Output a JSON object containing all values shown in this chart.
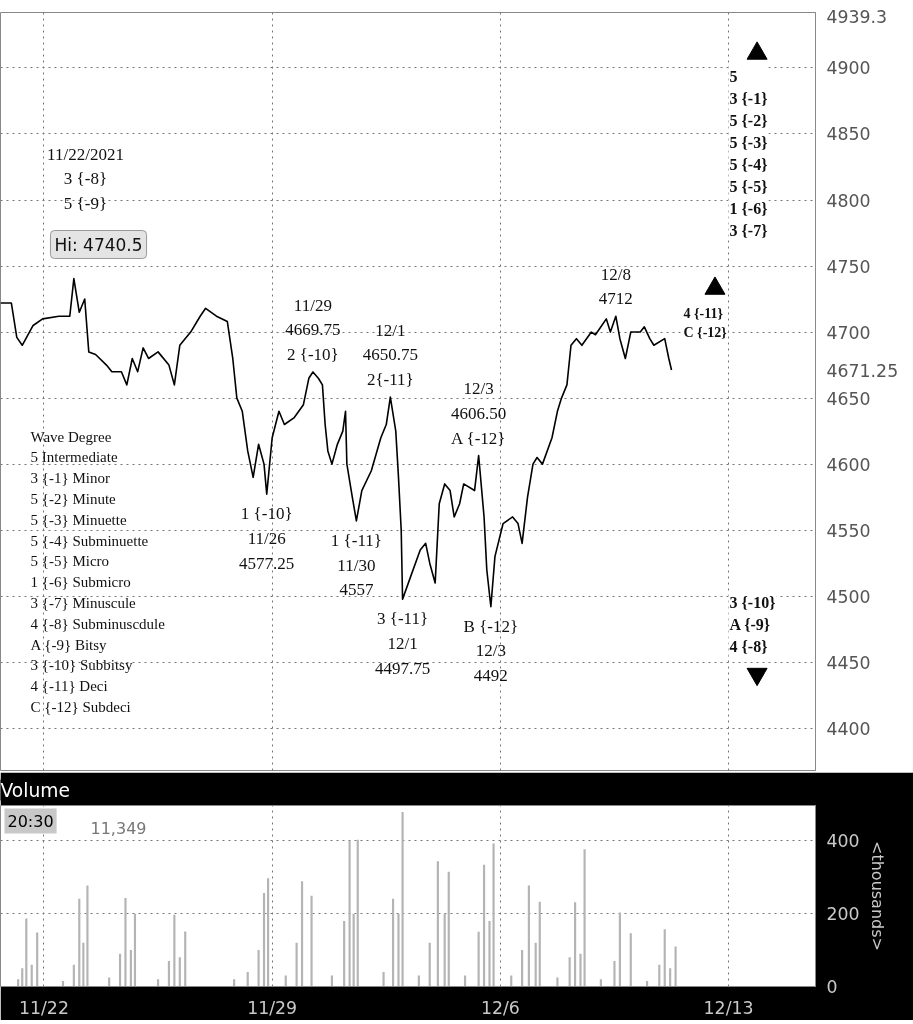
{
  "chart_data": [
    {
      "type": "line",
      "tick_labels": "y",
      "grid": true,
      "xlim": [
        "2021-11-20T16:00",
        "2021-12-15T16:00"
      ],
      "xticks": [
        {
          "value": "2021-11-22",
          "label": null
        },
        {
          "value": "2021-11-29",
          "label": null
        },
        {
          "value": "2021-12-06",
          "label": null
        },
        {
          "value": "2021-12-13",
          "label": null
        }
      ],
      "ylim": [
        4368,
        4942
      ],
      "yticks": [
        4400,
        4450,
        4500,
        4550,
        4600,
        4650,
        4700,
        4750,
        4800,
        4850,
        4900,
        {
          "value": 4939.3,
          "label": "4939.3"
        },
        {
          "value": 4671.25,
          "label": "4671.25"
        }
      ],
      "x": [
        "2021-11-20T16:00",
        "2021-11-21T00:00",
        "2021-11-21T04:00",
        "2021-11-21T08:00",
        "2021-11-21T16:00",
        "2021-11-21T23:00",
        "2021-11-22T11:00",
        "2021-11-22T19:00",
        "2021-11-22T22:00",
        "2021-11-23T02:00",
        "2021-11-23T06:00",
        "2021-11-23T09:00",
        "2021-11-23T14:00",
        "2021-11-23T22:00",
        "2021-11-24T02:00",
        "2021-11-24T09:00",
        "2021-11-24T13:00",
        "2021-11-24T17:00",
        "2021-11-24T21:00",
        "2021-11-25T01:00",
        "2021-11-25T05:00",
        "2021-11-25T12:00",
        "2021-11-25T20:00",
        "2021-11-26T00:00",
        "2021-11-26T04:00",
        "2021-11-26T12:00",
        "2021-11-26T19:00",
        "2021-11-26T23:00",
        "2021-11-27T07:00",
        "2021-11-27T15:00",
        "2021-11-27T19:00",
        "2021-11-27T22:00",
        "2021-11-28T02:00",
        "2021-11-28T06:00",
        "2021-11-28T10:00",
        "2021-11-28T14:00",
        "2021-11-28T18:00",
        "2021-11-28T20:00",
        "2021-11-29T00:00",
        "2021-11-29T05:00",
        "2021-11-29T09:00",
        "2021-11-29T16:00",
        "2021-11-29T23:00",
        "2021-11-30T03:00",
        "2021-11-30T06:00",
        "2021-11-30T10:00",
        "2021-11-30T13:00",
        "2021-11-30T15:00",
        "2021-11-30T17:00",
        "2021-11-30T20:00",
        "2021-12-01T00:00",
        "2021-12-01T04:00",
        "2021-12-01T06:00",
        "2021-12-01T07:00",
        "2021-12-01T11:00",
        "2021-12-01T14:00",
        "2021-12-01T18:00",
        "2021-12-02T01:00",
        "2021-12-02T08:00",
        "2021-12-02T12:00",
        "2021-12-02T15:00",
        "2021-12-02T19:00",
        "2021-12-02T21:00",
        "2021-12-02T23:00",
        "2021-12-03T00:00",
        "2021-12-03T06:00",
        "2021-12-03T13:00",
        "2021-12-03T17:00",
        "2021-12-03T20:00",
        "2021-12-04T00:00",
        "2021-12-04T03:00",
        "2021-12-04T07:00",
        "2021-12-04T11:00",
        "2021-12-04T14:00",
        "2021-12-04T18:00",
        "2021-12-04T21:00",
        "2021-12-05T05:00",
        "2021-12-05T08:00",
        "2021-12-05T12:00",
        "2021-12-05T14:00",
        "2021-12-05T17:00",
        "2021-12-05T20:00",
        "2021-12-06T02:00",
        "2021-12-06T09:00",
        "2021-12-06T13:00",
        "2021-12-06T16:00",
        "2021-12-06T20:00",
        "2021-12-07T00:00",
        "2021-12-07T03:00",
        "2021-12-07T07:00",
        "2021-12-07T14:00",
        "2021-12-07T18:00",
        "2021-12-07T21:00",
        "2021-12-08T01:00",
        "2021-12-08T04:00",
        "2021-12-08T08:00",
        "2021-12-08T12:00",
        "2021-12-08T19:00",
        "2021-12-08T22:00",
        "2021-12-09T06:00",
        "2021-12-09T09:00",
        "2021-12-09T13:00",
        "2021-12-09T16:00",
        "2021-12-09T20:00",
        "2021-12-10T00:00",
        "2021-12-10T07:00",
        "2021-12-10T10:00",
        "2021-12-10T14:00",
        "2021-12-10T17:00",
        "2021-12-11T01:00",
        "2021-12-11T04:00",
        "2021-12-11T06:00"
      ],
      "series": [
        {
          "color": "#000000",
          "values": [
            4722,
            4722,
            4696,
            4690,
            4705,
            4710,
            4712,
            4712,
            4740.5,
            4715,
            4725,
            4685,
            4683,
            4675,
            4670,
            4670,
            4660,
            4680,
            4670,
            4688,
            4680,
            4685,
            4675,
            4660,
            4690,
            4700,
            4712,
            4718,
            4712,
            4708,
            4680,
            4650,
            4640,
            4610,
            4590,
            4615,
            4600,
            4577.25,
            4620,
            4640,
            4630,
            4635,
            4645,
            4665,
            4669.75,
            4665,
            4660,
            4630,
            4610,
            4600,
            4615,
            4625,
            4640,
            4600,
            4575,
            4557,
            4580,
            4595,
            4620,
            4630,
            4650.75,
            4625,
            4590,
            4550,
            4497.75,
            4515,
            4535,
            4540,
            4525,
            4510,
            4570,
            4585,
            4580,
            4560,
            4570,
            4585,
            4580,
            4606.5,
            4560,
            4520,
            4492,
            4530,
            4555,
            4560,
            4555,
            4540,
            4575,
            4600,
            4605,
            4600,
            4620,
            4640,
            4650,
            4660,
            4690,
            4695,
            4690,
            4700,
            4698,
            4710,
            4700,
            4712,
            4695,
            4680,
            4700,
            4700,
            4704,
            4695,
            4690,
            4695,
            4680,
            4671.25
          ]
        },
        {
          "type": "scatter",
          "marker": "triangle",
          "color": "#000000",
          "x": [
            "2021-12-13T21:00",
            "2021-12-12T14:00"
          ],
          "values": [
            4911,
            4733
          ]
        },
        {
          "type": "scatter",
          "color": "#000000",
          "x": [
            "2021-12-13T21:00"
          ],
          "values": [
            4441
          ]
        }
      ],
      "annotations": [
        "Hi: 4740.5",
        "11/22/2021\n3 {-8}\n5 {-9}",
        "Wave Degree\n5            Intermediate\n3 {-1}    Minor\n5 {-2}    Minute\n5 {-3}    Minuette\n5 {-4}    Subminuette\n5 {-5}    Micro\n1 {-6}    Submicro\n3 {-7}    Minuscule\n4 {-8}    Subminuscdule\nA {-9}     Bitsy\n3 {-10} Subbitsy\n4 {-11} Deci\nC {-12} Subdeci",
        "5\n3 {-1}\n5 {-2}\n5 {-3}\n5 {-4}\n5 {-5}\n1 {-6}\n3 {-7}",
        "4 {-11}\nC {-12}",
        "3 {-10}\nA {-9}\n4 {-8}",
        {
          "text": "11/29\n4669.75\n2 {-10}",
          "x": "2021-11-30T06:00",
          "y": 4669.75
        },
        {
          "text": "12/1\n4650.75\n2{-11}",
          "x": "2021-12-02T15:00",
          "y": 4650.75
        },
        {
          "text": "12/3\n4606.50\nA {-12}",
          "x": "2021-12-05T08:00",
          "y": 4606.5
        },
        {
          "text": "12/8\n4712",
          "x": "2021-12-09T13:00",
          "y": 4712
        },
        {
          "text": "1 {-10}\n11/26\n4577.25",
          "x": "2021-11-28T20:00",
          "y": 4577.25
        },
        {
          "text": "1 {-11}\n11/30\n4557",
          "x": "2021-12-01T14:00",
          "y": 4557
        },
        {
          "text": "3 {-11}\n12/1\n4497.75",
          "x": "2021-12-03T00:00",
          "y": 4497.75
        },
        {
          "text": "B {-12}\n12/3\n4492",
          "x": "2021-12-05T17:00",
          "y": 4492
        }
      ]
    },
    {
      "type": "bar",
      "title": "Volume",
      "ylabel": "<thousands>",
      "grid": true,
      "xlim": [
        "2021-11-20T16:00",
        "2021-12-15T16:00"
      ],
      "xticks": [
        {
          "value": "2021-11-22",
          "label": "11/22"
        },
        {
          "value": "2021-11-29",
          "label": "11/29"
        },
        {
          "value": "2021-12-06",
          "label": "12/6"
        },
        {
          "value": "2021-12-13",
          "label": "12/13"
        }
      ],
      "ylim": [
        0,
        497
      ],
      "yticks": [
        0,
        200,
        400
      ],
      "x": [
        "2021-11-21T05:00",
        "2021-11-21T08:00",
        "2021-11-21T11:00",
        "2021-11-21T15:00",
        "2021-11-21T19:00",
        "2021-11-22T14:00",
        "2021-11-22T22:00",
        "2021-11-23T02:00",
        "2021-11-23T05:00",
        "2021-11-23T08:00",
        "2021-11-24T00:00",
        "2021-11-24T08:00",
        "2021-11-24T12:00",
        "2021-11-24T16:00",
        "2021-11-24T19:00",
        "2021-11-25T12:00",
        "2021-11-25T20:00",
        "2021-11-26T00:00",
        "2021-11-26T04:00",
        "2021-11-26T08:00",
        "2021-11-27T20:00",
        "2021-11-28T06:00",
        "2021-11-28T14:00",
        "2021-11-28T18:00",
        "2021-11-28T21:00",
        "2021-11-29T10:00",
        "2021-11-29T18:00",
        "2021-11-29T22:00",
        "2021-11-30T05:00",
        "2021-11-30T20:00",
        "2021-12-01T05:00",
        "2021-12-01T09:00",
        "2021-12-01T12:00",
        "2021-12-01T15:00",
        "2021-12-02T10:00",
        "2021-12-02T17:00",
        "2021-12-02T21:00",
        "2021-12-03T00:00",
        "2021-12-03T12:00",
        "2021-12-03T20:00",
        "2021-12-04T02:00",
        "2021-12-04T07:00",
        "2021-12-04T10:00",
        "2021-12-04T22:00",
        "2021-12-05T08:00",
        "2021-12-05T12:00",
        "2021-12-05T16:00",
        "2021-12-05T19:00",
        "2021-12-06T08:00",
        "2021-12-06T16:00",
        "2021-12-06T21:00",
        "2021-12-07T02:00",
        "2021-12-07T05:00",
        "2021-12-07T18:00",
        "2021-12-08T03:00",
        "2021-12-08T07:00",
        "2021-12-08T11:00",
        "2021-12-08T14:00",
        "2021-12-09T02:00",
        "2021-12-09T12:00",
        "2021-12-09T16:00",
        "2021-12-10T00:00",
        "2021-12-10T12:00",
        "2021-12-10T21:00",
        "2021-12-11T01:00",
        "2021-12-11T05:00",
        "2021-12-11T09:00"
      ],
      "series": [
        {
          "color": "#b4b4b4",
          "values": [
            20,
            50,
            187,
            60,
            148,
            15,
            60,
            241,
            120,
            277,
            25,
            90,
            243,
            100,
            200,
            20,
            70,
            197,
            80,
            151,
            20,
            40,
            100,
            257,
            297,
            30,
            120,
            289,
            249,
            30,
            180,
            400,
            200,
            403,
            40,
            241,
            200,
            479,
            30,
            120,
            344,
            200,
            315,
            30,
            150,
            334,
            180,
            393,
            30,
            100,
            277,
            120,
            233,
            25,
            80,
            231,
            90,
            377,
            20,
            70,
            203,
            146,
            15,
            60,
            157,
            50,
            110
          ]
        }
      ],
      "annotations": [
        "11,349",
        "20:30"
      ]
    }
  ]
}
